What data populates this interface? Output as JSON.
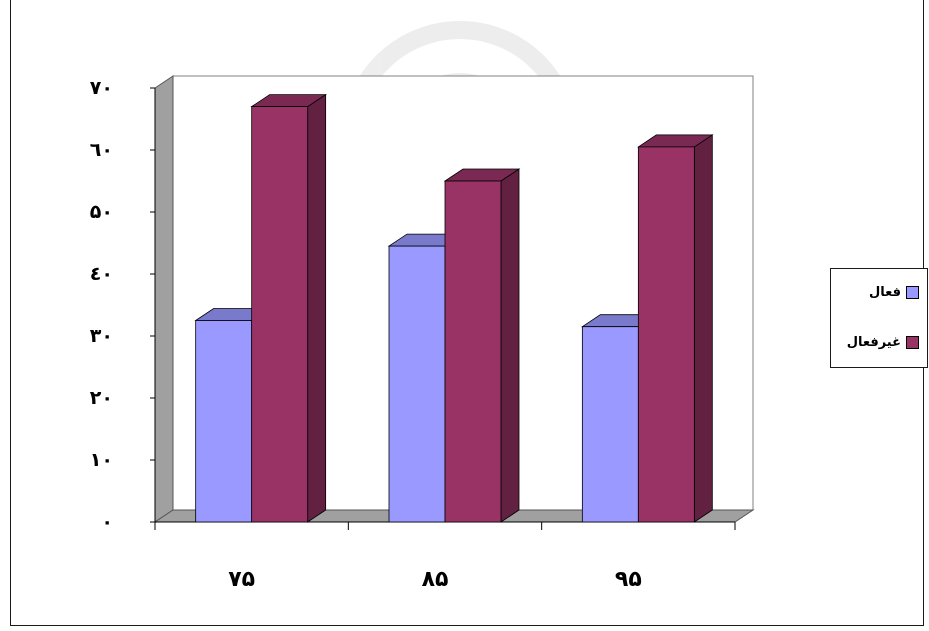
{
  "chart_data": {
    "type": "bar",
    "categories": [
      "۷۵",
      "۸۵",
      "۹۵"
    ],
    "y_ticks": [
      "۰",
      "۱۰",
      "۲۰",
      "۳۰",
      "٤۰",
      "۵۰",
      "٦۰",
      "۷۰"
    ],
    "ylim": [
      0,
      70
    ],
    "grid": false,
    "legend_position": "right",
    "series": [
      {
        "name": "فعال",
        "color": "#9999ff",
        "values": [
          32.5,
          44.5,
          31.5
        ]
      },
      {
        "name": "غیرفعال",
        "color": "#993366",
        "values": [
          67,
          55,
          60.5
        ]
      }
    ]
  },
  "legend": {
    "items": [
      {
        "label": "فعال",
        "color": "#9999ff"
      },
      {
        "label": "غیرفعال",
        "color": "#993366"
      }
    ]
  }
}
